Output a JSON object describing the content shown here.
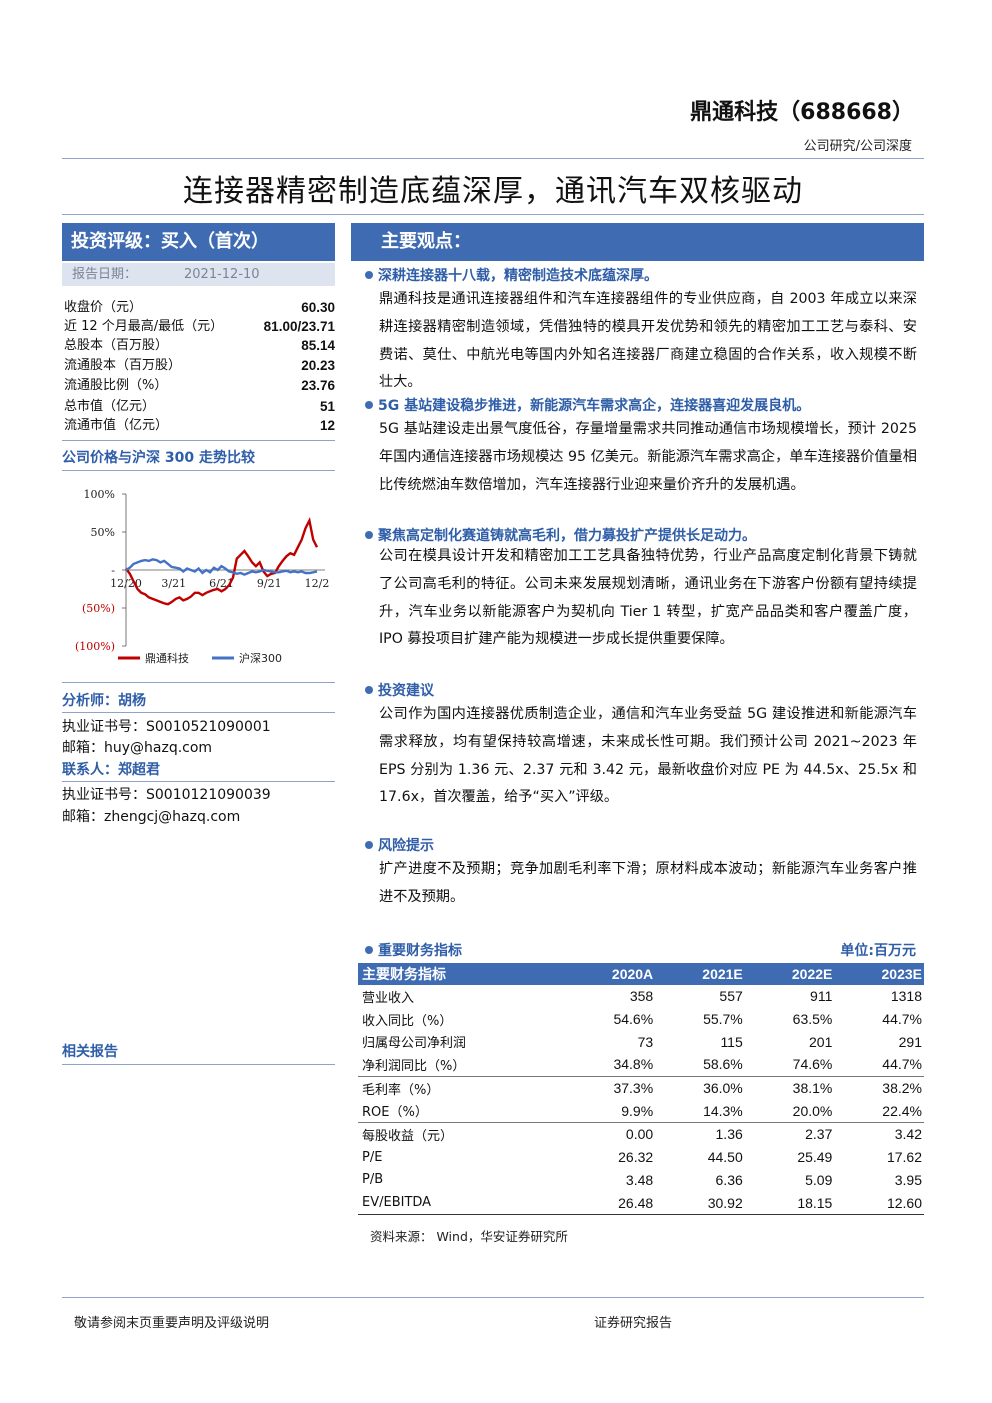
{
  "header": {
    "company": "鼎通科技（688668）",
    "category": "公司研究/公司深度",
    "title": "连接器精密制造底蕴深厚，通讯汽车双核驱动"
  },
  "left": {
    "rating": "投资评级：买入（首次）",
    "report_date_label": "报告日期：",
    "report_date": "2021-12-10",
    "stats": [
      {
        "label": "收盘价（元）",
        "value": "60.30"
      },
      {
        "label": "近 12 个月最高/最低（元）",
        "value": "81.00/23.71"
      },
      {
        "label": "总股本（百万股）",
        "value": "85.14"
      },
      {
        "label": "流通股本（百万股）",
        "value": "20.23"
      },
      {
        "label": "流通股比例（%）",
        "value": "23.76"
      },
      {
        "label": "总市值（亿元）",
        "value": "51"
      },
      {
        "label": "流通市值（亿元）",
        "value": "12"
      }
    ],
    "chart_title": "公司价格与沪深 300 走势比较",
    "analyst_head": "分析师：胡杨",
    "analyst_cert": "执业证书号：S0010521090001",
    "analyst_email": "邮箱：huy@hazq.com",
    "contact_head": "联系人：郑超君",
    "contact_cert": "执业证书号：S0010121090039",
    "contact_email": "邮箱：zhengcj@hazq.com",
    "related": "相关报告"
  },
  "chart_data": {
    "type": "line",
    "title": "公司价格与沪深 300 走势比较",
    "y_tick_labels": [
      "100%",
      "50%",
      "-",
      "(50%)",
      "(100%)"
    ],
    "ylim": [
      -100,
      100
    ],
    "x_tick_labels": [
      "12/20",
      "3/21",
      "6/21",
      "9/21",
      "12/2"
    ],
    "legend_position": "bottom",
    "series": [
      {
        "name": "鼎通科技",
        "color": "#c00000",
        "x": [
          0,
          1,
          2,
          3,
          4,
          5,
          6,
          7,
          8,
          9,
          10,
          11,
          12,
          13,
          14,
          15,
          16,
          17,
          18,
          19,
          20,
          21,
          22,
          23,
          24,
          25,
          26,
          27,
          28,
          29,
          30,
          31,
          32,
          33,
          34,
          35,
          36,
          37,
          38,
          39,
          40,
          41,
          42,
          43,
          44,
          45,
          46,
          47,
          48,
          49,
          50
        ],
        "values": [
          2,
          -5,
          -15,
          -25,
          -30,
          -32,
          -36,
          -38,
          -40,
          -42,
          -44,
          -45,
          -42,
          -38,
          -36,
          -40,
          -38,
          -35,
          -30,
          -30,
          -33,
          -30,
          -28,
          -26,
          -25,
          -28,
          -25,
          -20,
          -10,
          15,
          20,
          25,
          18,
          10,
          5,
          10,
          -2,
          -8,
          -5,
          -4,
          5,
          12,
          18,
          22,
          20,
          30,
          40,
          55,
          65,
          40,
          30
        ]
      },
      {
        "name": "沪深300",
        "color": "#4472c4",
        "x": [
          0,
          1,
          2,
          3,
          4,
          5,
          6,
          7,
          8,
          9,
          10,
          11,
          12,
          13,
          14,
          15,
          16,
          17,
          18,
          19,
          20,
          21,
          22,
          23,
          24,
          25,
          26,
          27,
          28,
          29,
          30,
          31,
          32,
          33,
          34,
          35,
          36,
          37,
          38,
          39,
          40,
          41,
          42,
          43,
          44,
          45,
          46,
          47,
          48,
          49,
          50
        ],
        "values": [
          0,
          3,
          8,
          10,
          12,
          13,
          12,
          14,
          13,
          10,
          12,
          8,
          4,
          3,
          2,
          -2,
          2,
          0,
          -2,
          2,
          -4,
          0,
          -3,
          3,
          0,
          5,
          2,
          -2,
          -3,
          -5,
          -4,
          -6,
          -4,
          -2,
          -3,
          -2,
          0,
          -1,
          -2,
          -3,
          -3,
          -2,
          -1,
          -3,
          -2,
          -3,
          -2,
          -4,
          -4,
          -3,
          -2
        ]
      }
    ]
  },
  "views": {
    "heading": "主要观点：",
    "sections": [
      {
        "bullet": "深耕连接器十八载，精密制造技术底蕴深厚。",
        "text": "鼎通科技是通讯连接器组件和汽车连接器组件的专业供应商，自 2003 年成立以来深耕连接器精密制造领域，凭借独特的模具开发优势和领先的精密加工工艺与泰科、安费诺、莫仕、中航光电等国内外知名连接器厂商建立稳固的合作关系，收入规模不断壮大。"
      },
      {
        "bullet": "5G 基站建设稳步推进，新能源汽车需求高企，连接器喜迎发展良机。",
        "text": "5G 基站建设走出景气度低谷，存量增量需求共同推动通信市场规模增长，预计 2025 年国内通信连接器市场规模达 95 亿美元。新能源汽车需求高企，单车连接器价值量相比传统燃油车数倍增加，汽车连接器行业迎来量价齐升的发展机遇。"
      },
      {
        "bullet": "聚焦高定制化赛道铸就高毛利，借力募投扩产提供长足动力。",
        "text": "公司在模具设计开发和精密加工工艺具备独特优势，行业产品高度定制化背景下铸就了公司高毛利的特征。公司未来发展规划清晰，通讯业务在下游客户份额有望持续提升，汽车业务以新能源客户为契机向 Tier 1 转型，扩宽产品品类和客户覆盖广度，IPO 募投项目扩建产能为规模进一步成长提供重要保障。"
      },
      {
        "bullet": "投资建议",
        "text": "公司作为国内连接器优质制造企业，通信和汽车业务受益 5G 建设推进和新能源汽车需求释放，均有望保持较高增速，未来成长性可期。我们预计公司 2021~2023 年 EPS 分别为 1.36 元、2.37 元和 3.42 元，最新收盘价对应 PE 为 44.5x、25.5x 和 17.6x，首次覆盖，给予“买入”评级。"
      },
      {
        "bullet": "风险提示",
        "text": "扩产进度不及预期；竞争加剧毛利率下滑；原材料成本波动；新能源汽车业务客户推进不及预期。"
      }
    ]
  },
  "financials": {
    "heading": "重要财务指标",
    "unit": "单位:百万元",
    "columns": [
      "主要财务指标",
      "2020A",
      "2021E",
      "2022E",
      "2023E"
    ],
    "rows": [
      [
        "营业收入",
        "358",
        "557",
        "911",
        "1318"
      ],
      [
        "收入同比（%）",
        "54.6%",
        "55.7%",
        "63.5%",
        "44.7%"
      ],
      [
        "归属母公司净利润",
        "73",
        "115",
        "201",
        "291"
      ],
      [
        "净利润同比（%）",
        "34.8%",
        "58.6%",
        "74.6%",
        "44.7%"
      ],
      [
        "毛利率（%）",
        "37.3%",
        "36.0%",
        "38.1%",
        "38.2%"
      ],
      [
        "ROE（%）",
        "9.9%",
        "14.3%",
        "20.0%",
        "22.4%"
      ],
      [
        "每股收益（元）",
        "0.00",
        "1.36",
        "2.37",
        "3.42"
      ],
      [
        "P/E",
        "26.32",
        "44.50",
        "25.49",
        "17.62"
      ],
      [
        "P/B",
        "3.48",
        "6.36",
        "5.09",
        "3.95"
      ],
      [
        "EV/EBITDA",
        "26.48",
        "30.92",
        "18.15",
        "12.60"
      ]
    ],
    "source": "资料来源：  Wind，华安证券研究所"
  },
  "footer": {
    "left": "敬请参阅末页重要声明及评级说明",
    "right": "证券研究报告"
  }
}
